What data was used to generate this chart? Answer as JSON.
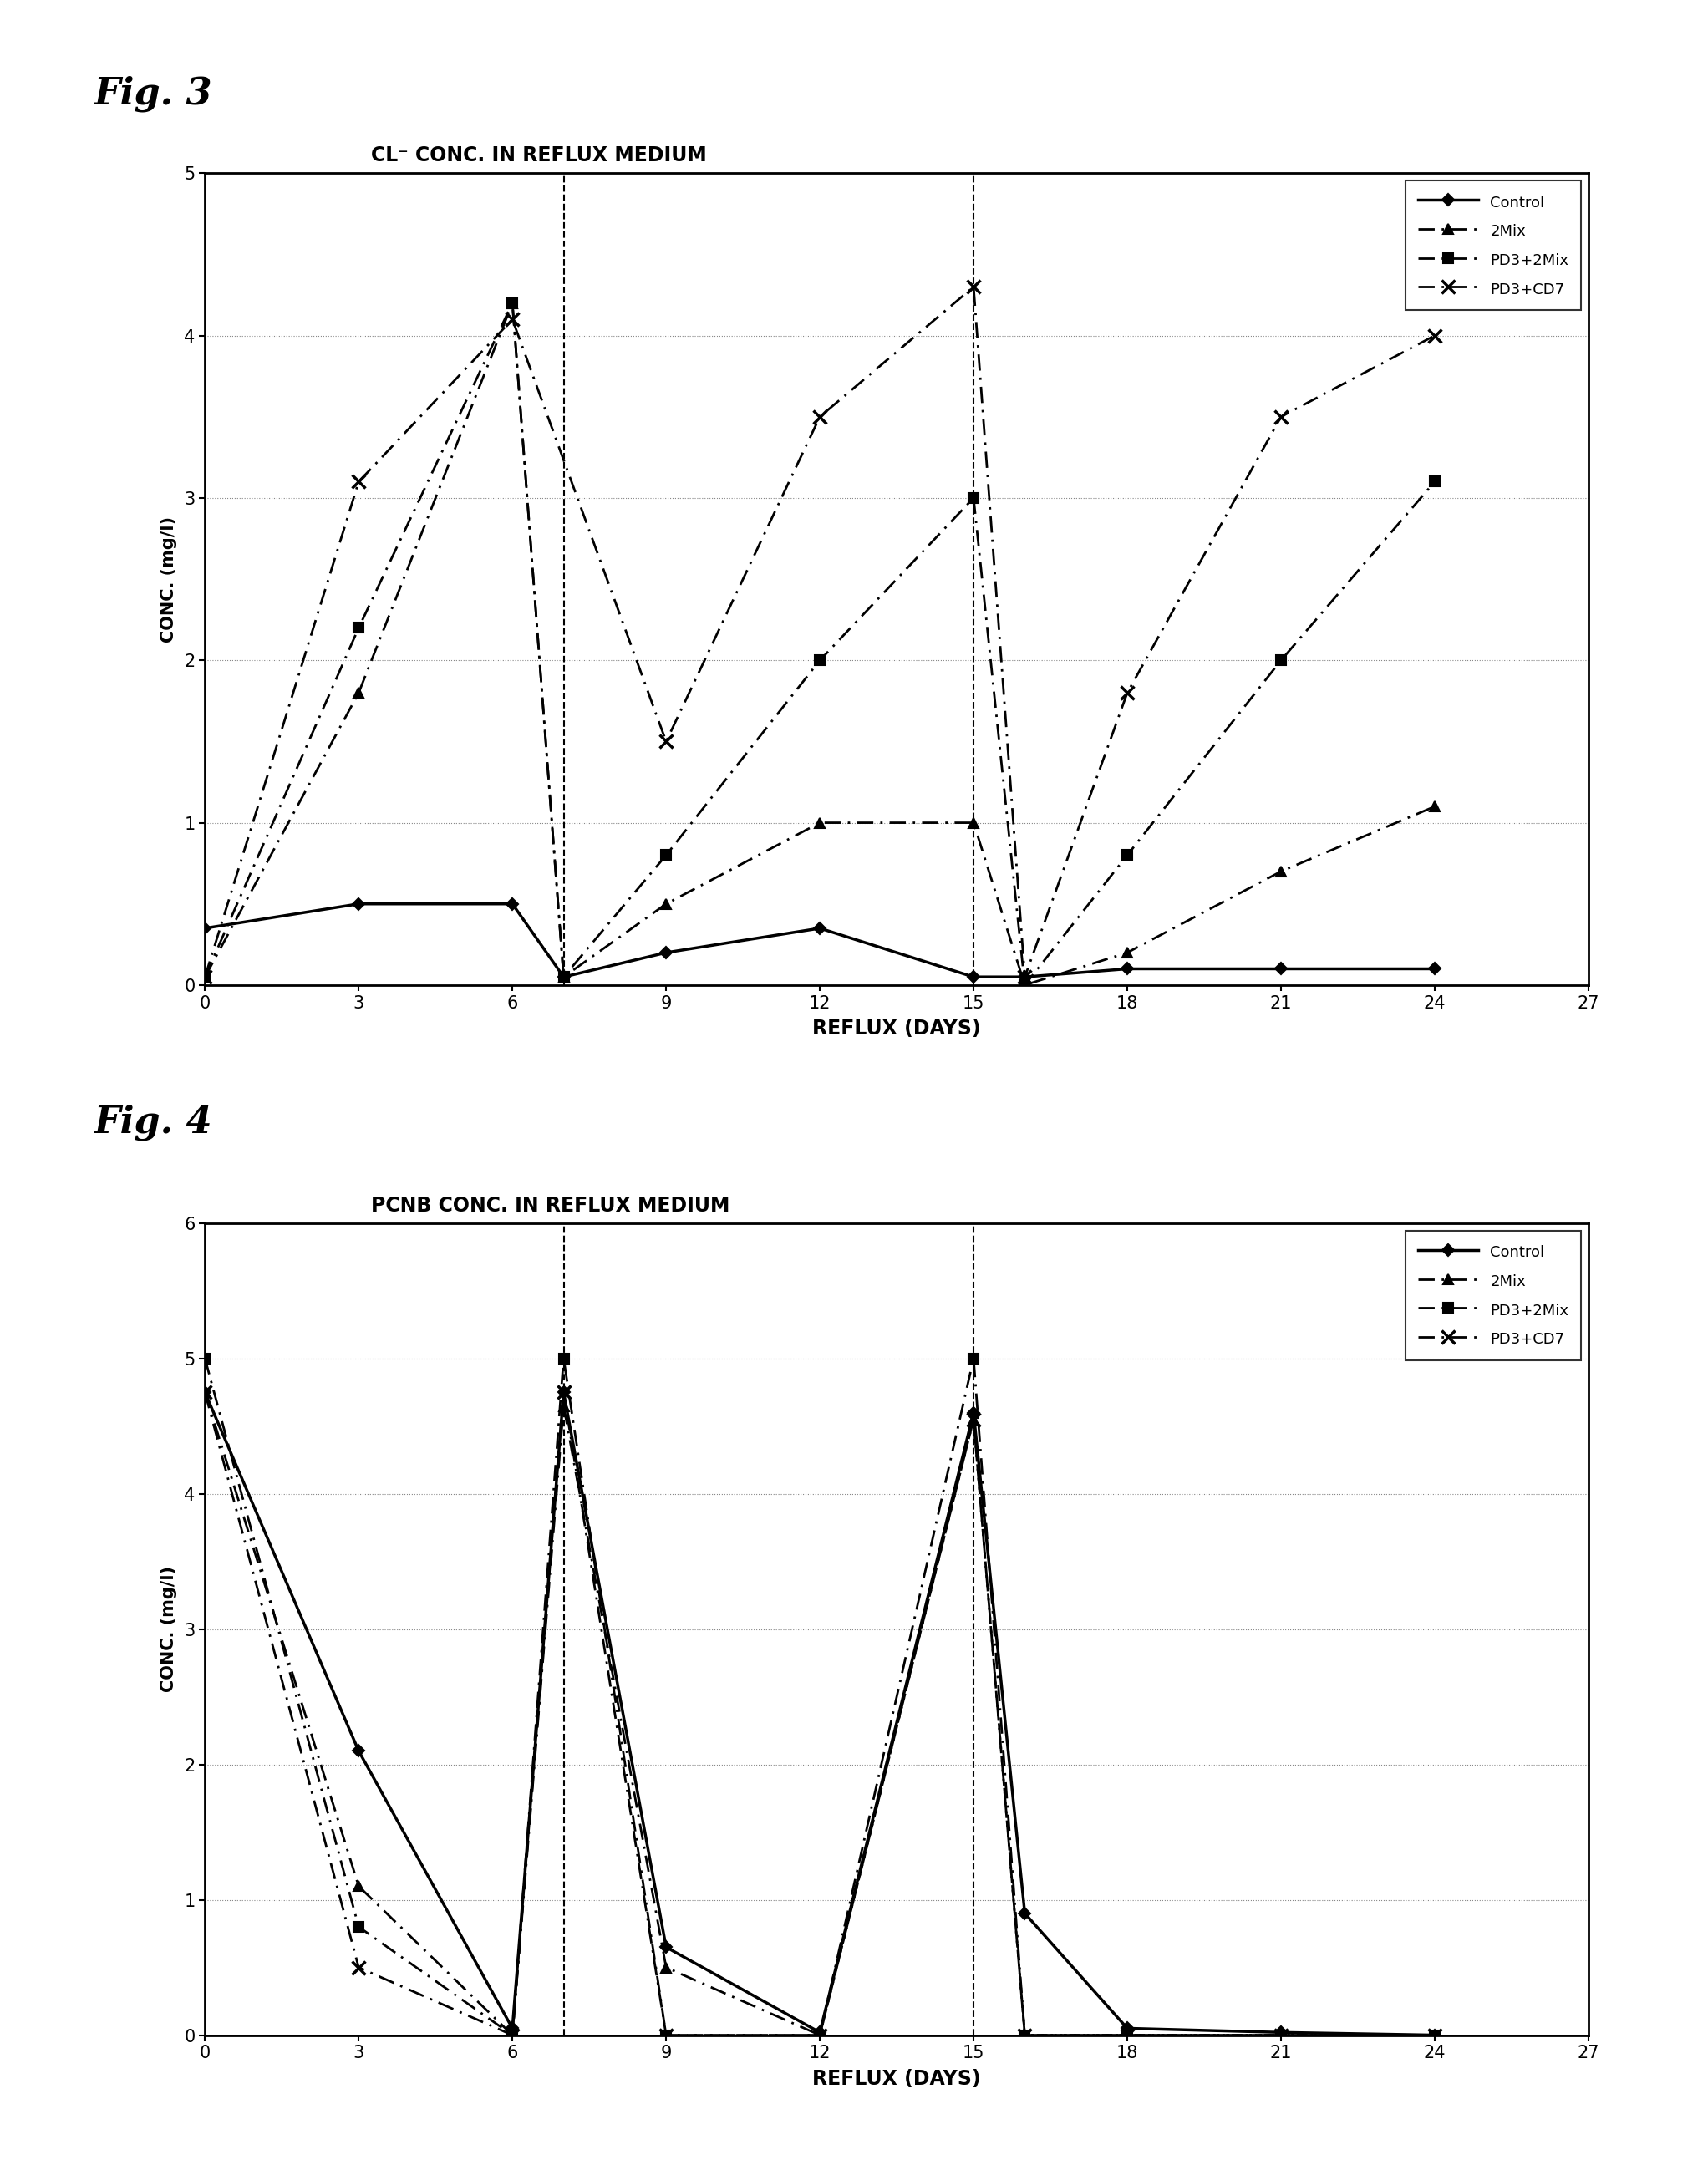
{
  "fig3": {
    "title": "CL⁻ CONC. IN REFLUX MEDIUM",
    "xlabel": "REFLUX (DAYS)",
    "ylabel": "CONC. (mg/l)",
    "ylim": [
      0,
      5
    ],
    "xlim": [
      0,
      27
    ],
    "yticks": [
      0,
      1,
      2,
      3,
      4,
      5
    ],
    "xticks": [
      0,
      3,
      6,
      9,
      12,
      15,
      18,
      21,
      24,
      27
    ],
    "series": {
      "Control": {
        "x": [
          0,
          3,
          6,
          7,
          9,
          12,
          15,
          16,
          18,
          21,
          24
        ],
        "y": [
          0.35,
          0.5,
          0.5,
          0.05,
          0.2,
          0.35,
          0.05,
          0.05,
          0.1,
          0.1,
          0.1
        ],
        "linestyle": "solid",
        "marker": "D",
        "markersize": 7,
        "linewidth": 2.5
      },
      "2Mix": {
        "x": [
          0,
          3,
          6,
          7,
          9,
          12,
          15,
          16,
          18,
          21,
          24
        ],
        "y": [
          0.05,
          1.8,
          4.2,
          0.05,
          0.5,
          1.0,
          1.0,
          0.0,
          0.2,
          0.7,
          1.1
        ],
        "linestyle": "dashdot",
        "marker": "^",
        "markersize": 8,
        "linewidth": 2.0
      },
      "PD3+2Mix": {
        "x": [
          0,
          3,
          6,
          7,
          9,
          12,
          15,
          16,
          18,
          21,
          24
        ],
        "y": [
          0.05,
          2.2,
          4.2,
          0.05,
          0.8,
          2.0,
          3.0,
          0.0,
          0.8,
          2.0,
          3.1
        ],
        "linestyle": "dashdot",
        "marker": "s",
        "markersize": 8,
        "linewidth": 2.0
      },
      "PD3+CD7": {
        "x": [
          0,
          3,
          6,
          9,
          12,
          15,
          16,
          18,
          21,
          24
        ],
        "y": [
          0.05,
          3.1,
          4.1,
          1.5,
          3.5,
          4.3,
          0.05,
          1.8,
          3.5,
          4.0
        ],
        "linestyle": "dashdot",
        "marker": "x",
        "markersize": 10,
        "linewidth": 2.0
      }
    },
    "vlines": [
      7,
      15
    ],
    "legend_labels": [
      "Control",
      "2Mix",
      "PD3+2Mix",
      "PD3+CD7"
    ]
  },
  "fig4": {
    "title": "PCNB CONC. IN REFLUX MEDIUM",
    "xlabel": "REFLUX (DAYS)",
    "ylabel": "CONC. (mg/l)",
    "ylim": [
      0,
      6
    ],
    "xlim": [
      0,
      27
    ],
    "yticks": [
      0,
      1,
      2,
      3,
      4,
      5,
      6
    ],
    "xticks": [
      0,
      3,
      6,
      9,
      12,
      15,
      18,
      21,
      24,
      27
    ],
    "series": {
      "Control": {
        "x": [
          0,
          3,
          6,
          7,
          9,
          12,
          15,
          16,
          18,
          21,
          24
        ],
        "y": [
          4.75,
          2.1,
          0.05,
          4.75,
          0.65,
          0.02,
          4.6,
          0.9,
          0.05,
          0.02,
          0.0
        ],
        "linestyle": "solid",
        "marker": "D",
        "markersize": 7,
        "linewidth": 2.5
      },
      "2Mix": {
        "x": [
          0,
          3,
          6,
          7,
          9,
          12,
          15,
          16,
          18,
          21,
          24
        ],
        "y": [
          4.75,
          1.1,
          0.0,
          4.65,
          0.5,
          0.0,
          4.55,
          0.0,
          0.0,
          0.0,
          0.0
        ],
        "linestyle": "dashdot",
        "marker": "^",
        "markersize": 8,
        "linewidth": 2.0
      },
      "PD3+2Mix": {
        "x": [
          0,
          3,
          6,
          7,
          9,
          12,
          15,
          16,
          18,
          21,
          24
        ],
        "y": [
          5.0,
          0.8,
          0.0,
          5.0,
          0.0,
          0.0,
          5.0,
          0.0,
          0.0,
          0.0,
          0.0
        ],
        "linestyle": "dashdot",
        "marker": "s",
        "markersize": 8,
        "linewidth": 2.0
      },
      "PD3+CD7": {
        "x": [
          0,
          3,
          6,
          7,
          9,
          12,
          15,
          16,
          18,
          21,
          24
        ],
        "y": [
          4.75,
          0.5,
          0.0,
          4.75,
          0.0,
          0.0,
          4.55,
          0.0,
          0.0,
          0.0,
          0.0
        ],
        "linestyle": "dashdot",
        "marker": "x",
        "markersize": 10,
        "linewidth": 2.0
      }
    },
    "vlines": [
      7,
      15
    ],
    "legend_labels": [
      "Control",
      "2Mix",
      "PD3+2Mix",
      "PD3+CD7"
    ]
  },
  "fig3_label": "Fig. 3",
  "fig4_label": "Fig. 4",
  "background_color": "#ffffff",
  "grid_color": "#888888",
  "grid_linestyle": ":",
  "grid_linewidth": 0.8
}
